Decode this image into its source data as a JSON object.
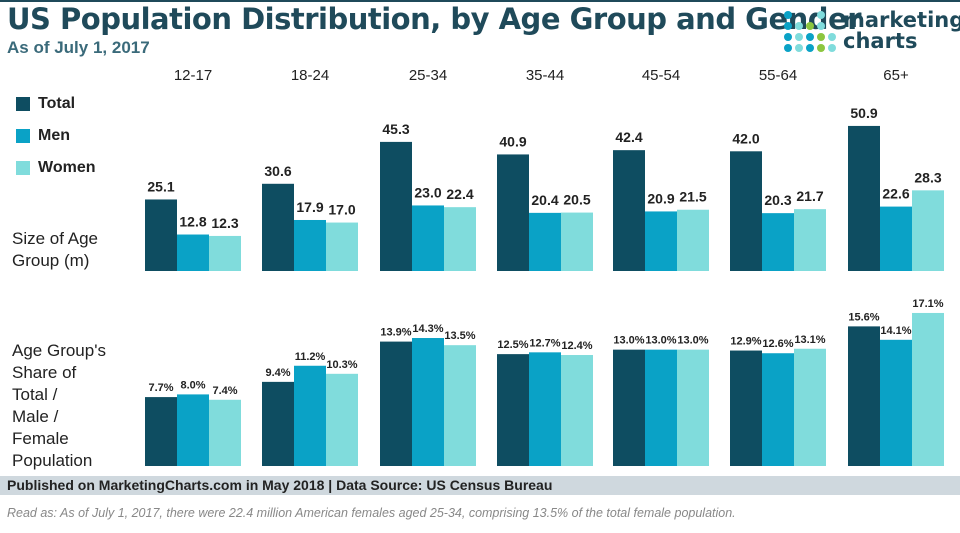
{
  "title": "US Population Distribution, by Age Group and Gender",
  "subtitle": "As of July 1, 2017",
  "logo": {
    "line1": "marketing",
    "line2": "charts"
  },
  "colors": {
    "Total": "#0e4d61",
    "Men": "#0aa2c6",
    "Women": "#80dcdc"
  },
  "chart_data": [
    {
      "type": "bar",
      "ylabel": "Size of Age Group (m)",
      "categories": [
        "12-17",
        "18-24",
        "25-34",
        "35-44",
        "45-54",
        "55-64",
        "65+"
      ],
      "series": [
        {
          "name": "Total",
          "values": [
            25.1,
            30.6,
            45.3,
            40.9,
            42.4,
            42.0,
            50.9
          ],
          "labels": [
            "25.1",
            "30.6",
            "45.3",
            "40.9",
            "42.4",
            "42.0",
            "50.9"
          ]
        },
        {
          "name": "Men",
          "values": [
            12.8,
            17.9,
            23.0,
            20.4,
            20.9,
            20.3,
            22.6
          ],
          "labels": [
            "12.8",
            "17.9",
            "23.0",
            "20.4",
            "20.9",
            "20.3",
            "22.6"
          ]
        },
        {
          "name": "Women",
          "values": [
            12.3,
            17.0,
            22.4,
            20.5,
            21.5,
            21.7,
            28.3
          ],
          "labels": [
            "12.3",
            "17.0",
            "22.4",
            "20.5",
            "21.5",
            "21.7",
            "28.3"
          ]
        }
      ],
      "legend": "top-left"
    },
    {
      "type": "bar",
      "ylabel": "Age Group's Share of Total / Male / Female Population",
      "categories": [
        "12-17",
        "18-24",
        "25-34",
        "35-44",
        "45-54",
        "55-64",
        "65+"
      ],
      "series": [
        {
          "name": "Total",
          "values": [
            7.7,
            9.4,
            13.9,
            12.5,
            13.0,
            12.9,
            15.6
          ],
          "labels": [
            "7.7%",
            "9.4%",
            "13.9%",
            "12.5%",
            "13.0%",
            "12.9%",
            "15.6%"
          ]
        },
        {
          "name": "Men",
          "values": [
            8.0,
            11.2,
            14.3,
            12.7,
            13.0,
            12.6,
            14.1
          ],
          "labels": [
            "8.0%",
            "11.2%",
            "14.3%",
            "12.7%",
            "13.0%",
            "12.6%",
            "14.1%"
          ]
        },
        {
          "name": "Women",
          "values": [
            7.4,
            10.3,
            13.5,
            12.4,
            13.0,
            13.1,
            17.1
          ],
          "labels": [
            "7.4%",
            "10.3%",
            "13.5%",
            "12.4%",
            "13.0%",
            "13.1%",
            "17.1%"
          ]
        }
      ]
    }
  ],
  "row_labels": {
    "size": [
      "Size of Age",
      "Group (m)"
    ],
    "share": [
      "Age Group's",
      "Share of",
      "Total /",
      "Male /",
      "Female",
      "Population"
    ]
  },
  "legend": [
    "Total",
    "Men",
    "Women"
  ],
  "footer": "Published on MarketingCharts.com in May 2018 | Data Source: US Census Bureau",
  "note": "Read as: As of July 1, 2017, there were 22.4 million American females aged 25-34, comprising 13.5% of the total female population."
}
